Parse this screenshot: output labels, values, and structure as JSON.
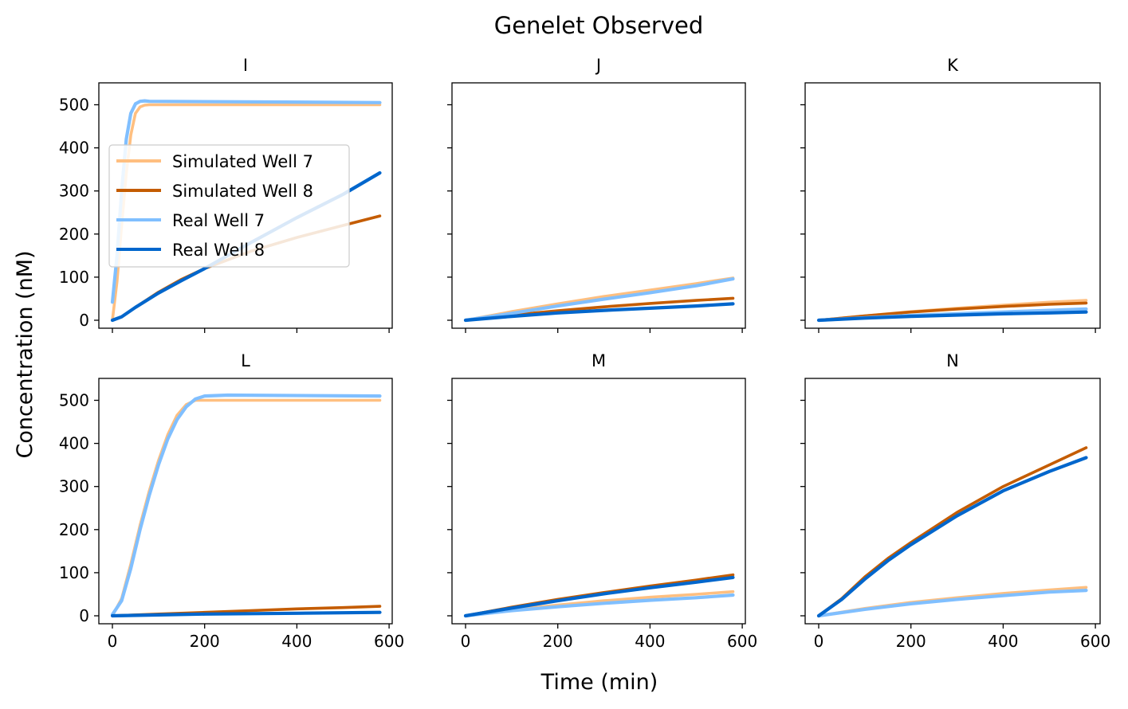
{
  "figure": {
    "title": "Genelet Observed",
    "xlabel": "Time (min)",
    "ylabel": "Concentration (nM)"
  },
  "legend": {
    "placement": "panel I, center-left",
    "entries": [
      "Simulated Well 7",
      "Simulated Well 8",
      "Real Well 7",
      "Real Well 8"
    ]
  },
  "colors": {
    "sim7": "#ffbf80",
    "sim8": "#c45c00",
    "real7": "#80bfff",
    "real8": "#0066cc"
  },
  "chart_data": {
    "type": "line",
    "layout": "2x3 small multiples, shared x and y axes",
    "xlim": [
      0,
      580
    ],
    "ylim": [
      0,
      550
    ],
    "xticks": [
      0,
      200,
      400,
      600
    ],
    "yticks": [
      0,
      100,
      200,
      300,
      400,
      500
    ],
    "grid": false,
    "panels": [
      {
        "title": "I",
        "series": [
          {
            "name": "Simulated Well 7",
            "x": [
              0,
              10,
              20,
              30,
              40,
              50,
              60,
              70,
              80,
              580
            ],
            "y": [
              0,
              90,
              220,
              340,
              430,
              480,
              495,
              499,
              500,
              500
            ]
          },
          {
            "name": "Simulated Well 8",
            "x": [
              0,
              20,
              50,
              100,
              150,
              200,
              300,
              400,
              500,
              580
            ],
            "y": [
              0,
              8,
              30,
              65,
              95,
              120,
              160,
              192,
              220,
              242
            ]
          },
          {
            "name": "Real Well 7",
            "x": [
              0,
              10,
              20,
              30,
              40,
              50,
              60,
              70,
              80,
              580
            ],
            "y": [
              42,
              150,
              300,
              420,
              480,
              502,
              508,
              509,
              508,
              505
            ]
          },
          {
            "name": "Real Well 8",
            "x": [
              0,
              20,
              50,
              100,
              150,
              200,
              300,
              400,
              500,
              580
            ],
            "y": [
              0,
              8,
              30,
              63,
              92,
              120,
              180,
              238,
              292,
              342
            ]
          }
        ]
      },
      {
        "title": "J",
        "series": [
          {
            "name": "Simulated Well 7",
            "x": [
              0,
              100,
              200,
              300,
              400,
              500,
              580
            ],
            "y": [
              0,
              20,
              38,
              55,
              70,
              85,
              98
            ]
          },
          {
            "name": "Simulated Well 8",
            "x": [
              0,
              100,
              200,
              300,
              400,
              500,
              580
            ],
            "y": [
              0,
              12,
              22,
              31,
              39,
              46,
              51
            ]
          },
          {
            "name": "Real Well 7",
            "x": [
              0,
              100,
              200,
              300,
              400,
              500,
              580
            ],
            "y": [
              0,
              16,
              33,
              49,
              64,
              80,
              96
            ]
          },
          {
            "name": "Real Well 8",
            "x": [
              0,
              100,
              200,
              300,
              400,
              500,
              580
            ],
            "y": [
              0,
              9,
              17,
              23,
              28,
              33,
              38
            ]
          }
        ]
      },
      {
        "title": "K",
        "series": [
          {
            "name": "Simulated Well 7",
            "x": [
              0,
              100,
              200,
              300,
              400,
              500,
              580
            ],
            "y": [
              0,
              10,
              20,
              28,
              35,
              42,
              46
            ]
          },
          {
            "name": "Simulated Well 8",
            "x": [
              0,
              100,
              200,
              300,
              400,
              500,
              580
            ],
            "y": [
              0,
              10,
              19,
              26,
              32,
              37,
              40
            ]
          },
          {
            "name": "Real Well 7",
            "x": [
              0,
              100,
              200,
              300,
              400,
              500,
              580
            ],
            "y": [
              0,
              6,
              11,
              15,
              19,
              23,
              26
            ]
          },
          {
            "name": "Real Well 8",
            "x": [
              0,
              100,
              200,
              300,
              400,
              500,
              580
            ],
            "y": [
              0,
              5,
              9,
              12,
              15,
              17,
              19
            ]
          }
        ]
      },
      {
        "title": "L",
        "series": [
          {
            "name": "Simulated Well 7",
            "x": [
              0,
              20,
              40,
              60,
              80,
              100,
              120,
              140,
              160,
              180,
              200,
              580
            ],
            "y": [
              0,
              40,
              120,
              210,
              290,
              360,
              420,
              465,
              490,
              500,
              500,
              500
            ]
          },
          {
            "name": "Simulated Well 8",
            "x": [
              0,
              100,
              200,
              300,
              400,
              500,
              580
            ],
            "y": [
              0,
              4,
              8,
              12,
              16,
              19,
              22
            ]
          },
          {
            "name": "Real Well 7",
            "x": [
              0,
              20,
              40,
              60,
              80,
              100,
              120,
              140,
              160,
              180,
              200,
              250,
              580
            ],
            "y": [
              3,
              35,
              110,
              200,
              280,
              350,
              410,
              455,
              485,
              503,
              510,
              512,
              510
            ]
          },
          {
            "name": "Real Well 8",
            "x": [
              0,
              100,
              200,
              300,
              400,
              500,
              580
            ],
            "y": [
              0,
              2,
              4,
              5,
              6,
              7,
              8
            ]
          }
        ]
      },
      {
        "title": "M",
        "series": [
          {
            "name": "Simulated Well 7",
            "x": [
              0,
              100,
              200,
              300,
              400,
              500,
              580
            ],
            "y": [
              0,
              14,
              25,
              35,
              43,
              50,
              56
            ]
          },
          {
            "name": "Simulated Well 8",
            "x": [
              0,
              100,
              200,
              300,
              400,
              500,
              580
            ],
            "y": [
              0,
              20,
              38,
              54,
              69,
              83,
              95
            ]
          },
          {
            "name": "Real Well 7",
            "x": [
              0,
              100,
              200,
              300,
              400,
              500,
              580
            ],
            "y": [
              0,
              12,
              21,
              29,
              36,
              42,
              48
            ]
          },
          {
            "name": "Real Well 8",
            "x": [
              0,
              100,
              200,
              300,
              400,
              500,
              580
            ],
            "y": [
              0,
              18,
              35,
              51,
              65,
              78,
              89
            ]
          }
        ]
      },
      {
        "title": "N",
        "series": [
          {
            "name": "Simulated Well 7",
            "x": [
              0,
              100,
              200,
              300,
              400,
              500,
              580
            ],
            "y": [
              0,
              17,
              31,
              42,
              52,
              60,
              66
            ]
          },
          {
            "name": "Simulated Well 8",
            "x": [
              0,
              50,
              100,
              150,
              200,
              300,
              400,
              500,
              580
            ],
            "y": [
              0,
              40,
              90,
              133,
              170,
              240,
              300,
              350,
              390
            ]
          },
          {
            "name": "Real Well 7",
            "x": [
              0,
              100,
              200,
              300,
              400,
              500,
              580
            ],
            "y": [
              0,
              15,
              28,
              38,
              47,
              55,
              59
            ]
          },
          {
            "name": "Real Well 8",
            "x": [
              0,
              50,
              100,
              150,
              200,
              300,
              400,
              500,
              580
            ],
            "y": [
              0,
              38,
              85,
              128,
              165,
              232,
              290,
              335,
              367
            ]
          }
        ]
      }
    ]
  }
}
